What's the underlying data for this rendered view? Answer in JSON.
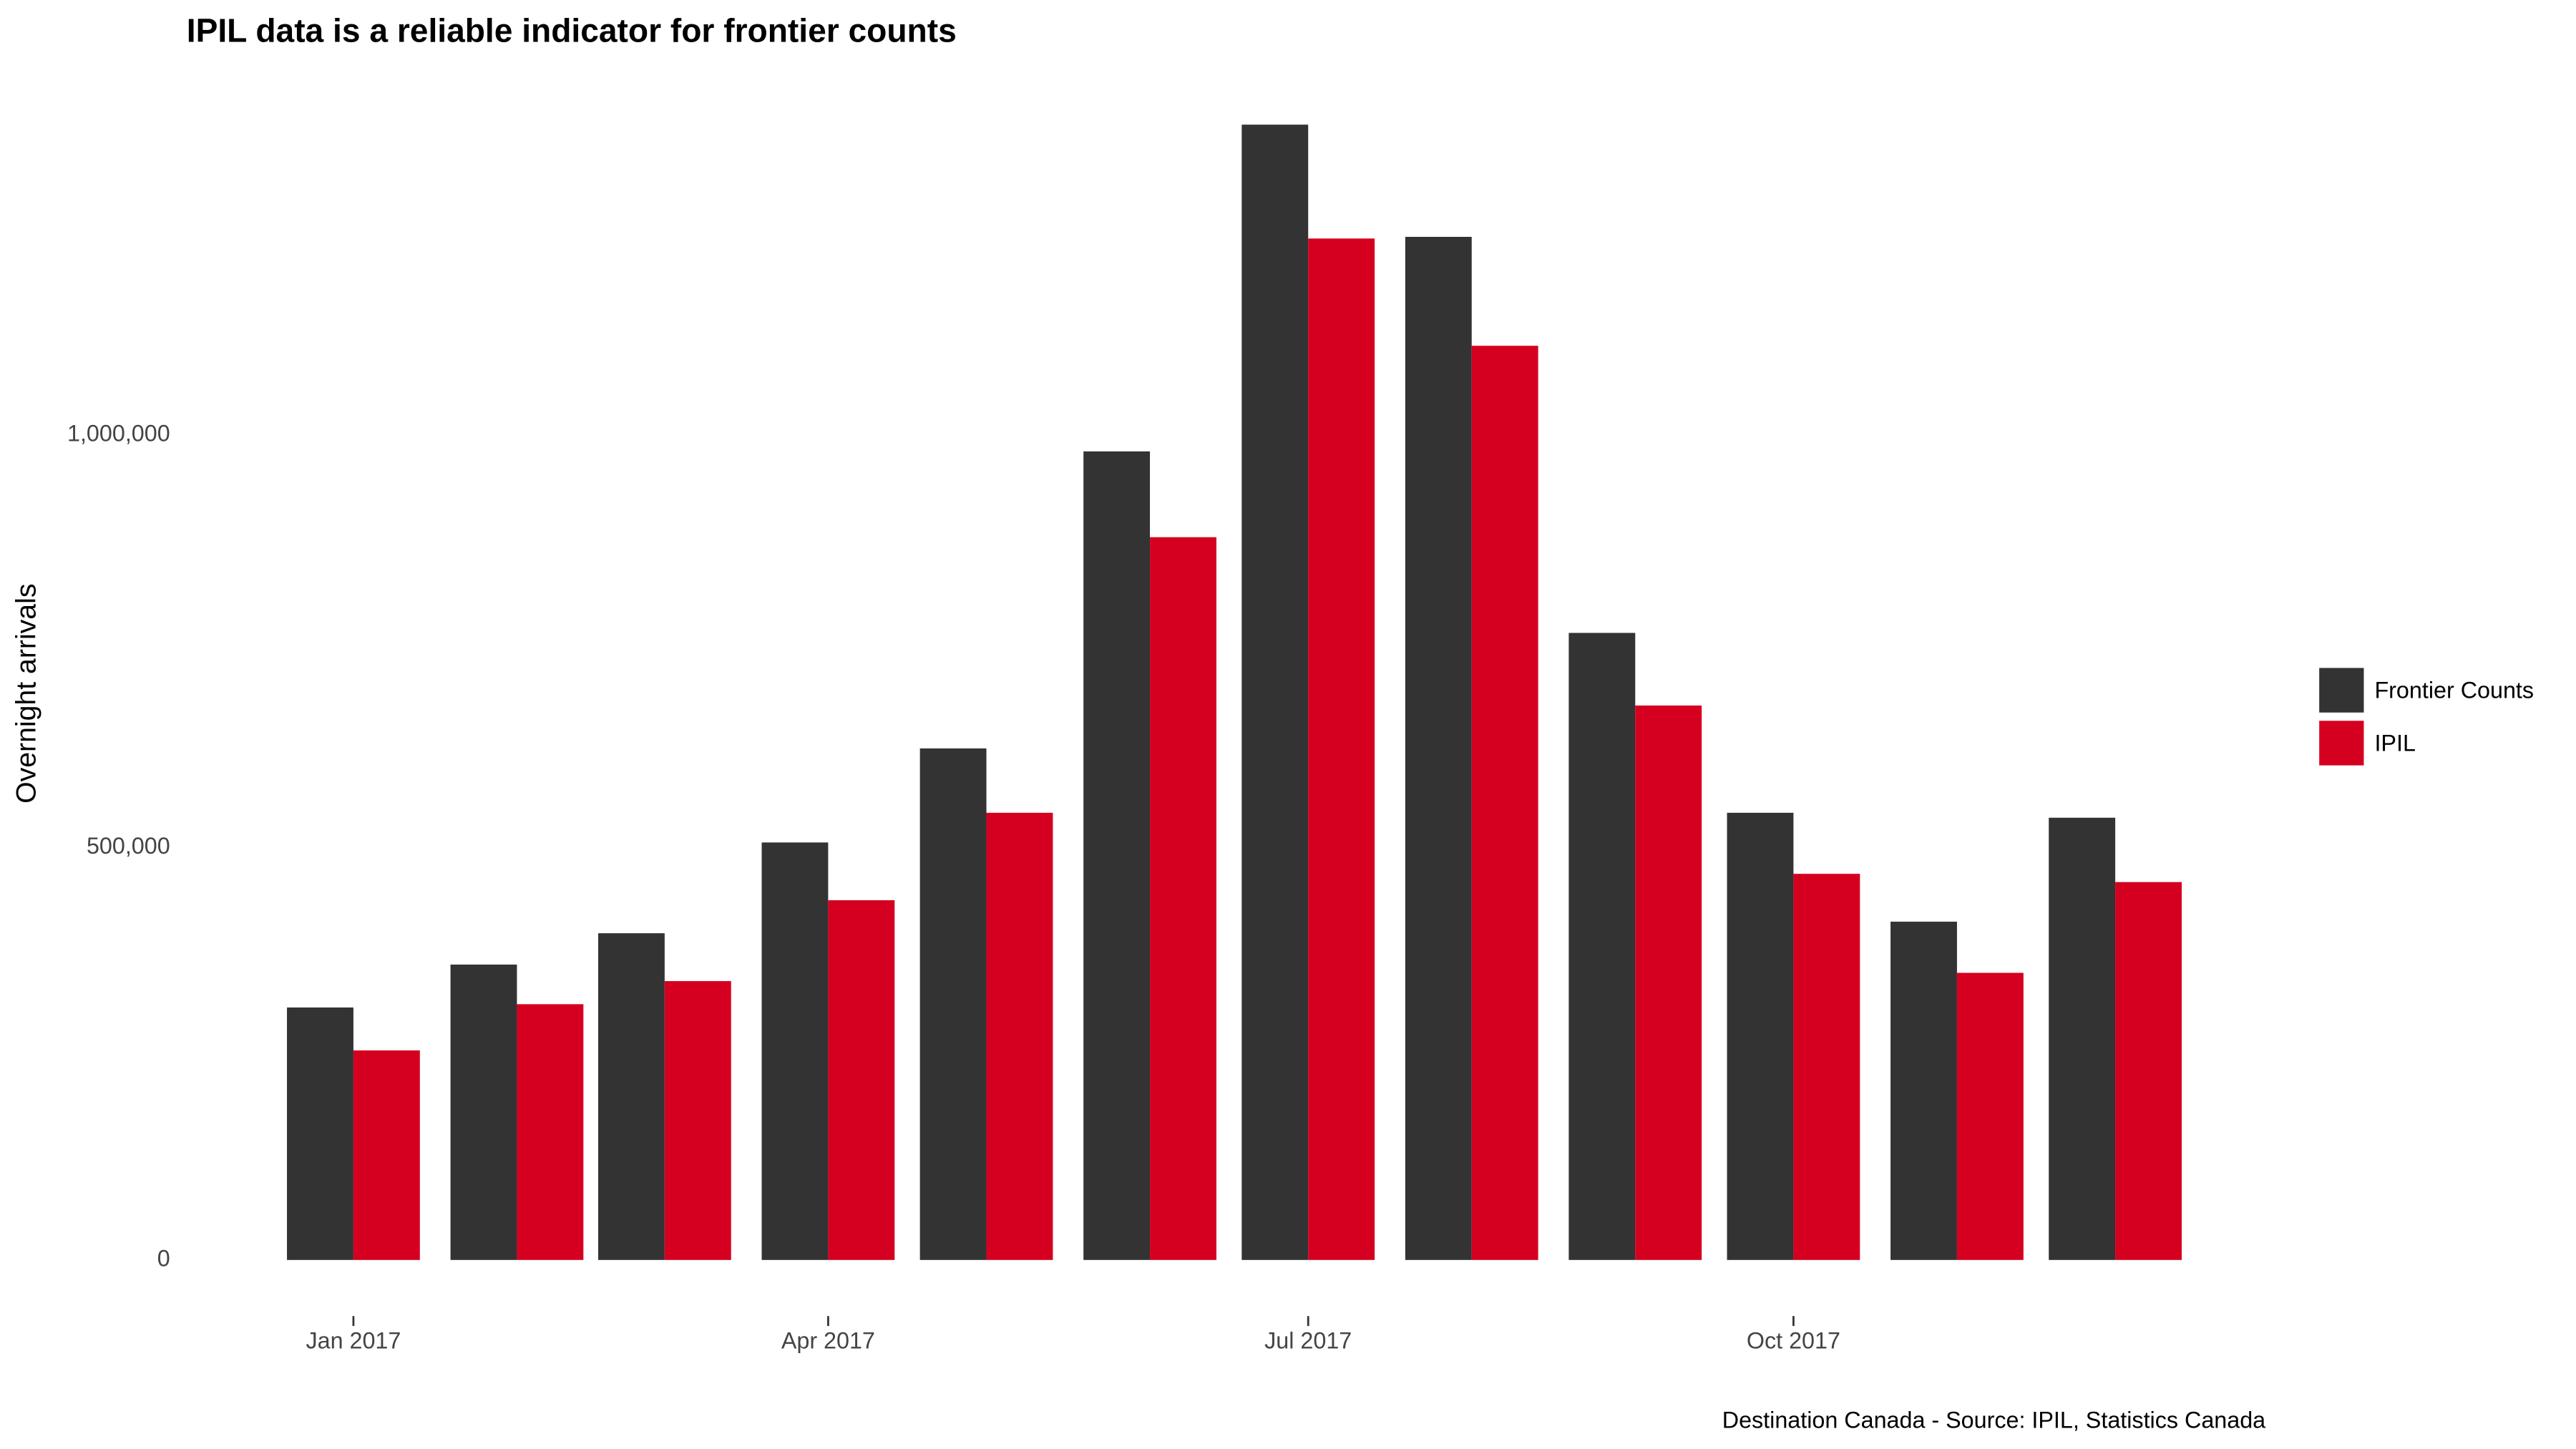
{
  "chart_data": {
    "type": "bar",
    "title": "IPIL data is a reliable indicator for frontier counts",
    "y_label": "Overnight arrivals",
    "caption": "Destination Canada - Source: IPIL, Statistics Canada",
    "x": [
      "2017-01",
      "2017-02",
      "2017-03",
      "2017-04",
      "2017-05",
      "2017-06",
      "2017-07",
      "2017-08",
      "2017-09",
      "2017-10",
      "2017-11",
      "2017-12"
    ],
    "xlim": [
      "2016-12",
      "2018-01"
    ],
    "xticks": [
      {
        "value": "2017-01",
        "label": "Jan 2017"
      },
      {
        "value": "2017-04",
        "label": "Apr 2017"
      },
      {
        "value": "2017-07",
        "label": "Jul 2017"
      },
      {
        "value": "2017-10",
        "label": "Oct 2017"
      }
    ],
    "ylim": [
      -60000,
      1410000
    ],
    "yticks": [
      0,
      {
        "value": 500000,
        "label": "500,000"
      },
      {
        "value": 1000000,
        "label": "1,000,000"
      }
    ],
    "grid": false,
    "legend": "right",
    "series": [
      {
        "name": "Frontier Counts",
        "color": "#333333",
        "values": [
          306000,
          358000,
          396000,
          506000,
          620000,
          980000,
          1376000,
          1240000,
          760000,
          542000,
          410000,
          536000
        ]
      },
      {
        "name": "IPIL",
        "color": "#d50020",
        "values": [
          254000,
          310000,
          338000,
          436000,
          542000,
          876000,
          1238000,
          1108000,
          672000,
          468000,
          348000,
          458000
        ]
      }
    ]
  }
}
